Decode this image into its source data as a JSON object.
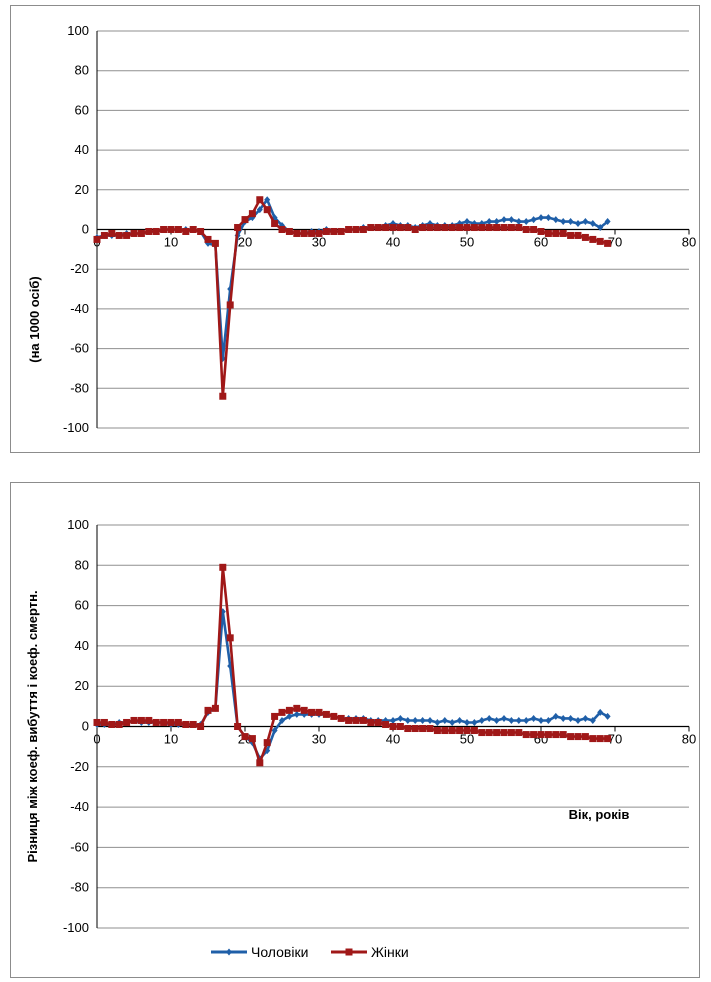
{
  "chart_data": [
    {
      "type": "line",
      "xlim": [
        0,
        80
      ],
      "ylim": [
        -100,
        100
      ],
      "x_ticks": [
        "0",
        "10",
        "20",
        "30",
        "40",
        "50",
        "60",
        "70",
        "80"
      ],
      "y_ticks": [
        "100",
        "80",
        "60",
        "40",
        "20",
        "0",
        "-20",
        "-40",
        "-60",
        "-80",
        "-100"
      ],
      "ylabel": "(на 1000 осіб)",
      "xlabel": "",
      "grid": "horizontal",
      "series": [
        {
          "name": "Чоловіки",
          "color": "#1f5fa8",
          "marker": "diamond",
          "x": [
            0,
            1,
            2,
            3,
            4,
            5,
            6,
            7,
            8,
            9,
            10,
            11,
            12,
            13,
            14,
            15,
            16,
            17,
            18,
            19,
            20,
            21,
            22,
            23,
            24,
            25,
            26,
            27,
            28,
            29,
            30,
            31,
            32,
            33,
            34,
            35,
            36,
            37,
            38,
            39,
            40,
            41,
            42,
            43,
            44,
            45,
            46,
            47,
            48,
            49,
            50,
            51,
            52,
            53,
            54,
            55,
            56,
            57,
            58,
            59,
            60,
            61,
            62,
            63,
            64,
            65,
            66,
            67,
            68,
            69
          ],
          "y": [
            -4,
            -3,
            -3,
            -3,
            -2,
            -2,
            -2,
            -1,
            -1,
            0,
            0,
            0,
            0,
            0,
            -1,
            -7,
            -8,
            -65,
            -30,
            -3,
            4,
            6,
            10,
            15,
            6,
            2,
            -1,
            -2,
            -2,
            -1,
            -1,
            0,
            -1,
            -1,
            0,
            0,
            1,
            1,
            1,
            2,
            3,
            2,
            2,
            1,
            2,
            3,
            2,
            2,
            2,
            3,
            4,
            3,
            3,
            4,
            4,
            5,
            5,
            4,
            4,
            5,
            6,
            6,
            5,
            4,
            4,
            3,
            4,
            3,
            1,
            4
          ]
        },
        {
          "name": "Жінки",
          "color": "#a01818",
          "marker": "square",
          "x": [
            0,
            1,
            2,
            3,
            4,
            5,
            6,
            7,
            8,
            9,
            10,
            11,
            12,
            13,
            14,
            15,
            16,
            17,
            18,
            19,
            20,
            21,
            22,
            23,
            24,
            25,
            26,
            27,
            28,
            29,
            30,
            31,
            32,
            33,
            34,
            35,
            36,
            37,
            38,
            39,
            40,
            41,
            42,
            43,
            44,
            45,
            46,
            47,
            48,
            49,
            50,
            51,
            52,
            53,
            54,
            55,
            56,
            57,
            58,
            59,
            60,
            61,
            62,
            63,
            64,
            65,
            66,
            67,
            68,
            69
          ],
          "y": [
            -5,
            -3,
            -2,
            -3,
            -3,
            -2,
            -2,
            -1,
            -1,
            0,
            0,
            0,
            -1,
            0,
            -1,
            -5,
            -7,
            -84,
            -38,
            1,
            5,
            8,
            15,
            10,
            3,
            0,
            -1,
            -2,
            -2,
            -2,
            -2,
            -1,
            -1,
            -1,
            0,
            0,
            0,
            1,
            1,
            1,
            1,
            1,
            1,
            0,
            1,
            1,
            1,
            1,
            1,
            1,
            1,
            1,
            1,
            1,
            1,
            1,
            1,
            1,
            0,
            0,
            -1,
            -2,
            -2,
            -2,
            -3,
            -3,
            -4,
            -5,
            -6,
            -7
          ]
        }
      ]
    },
    {
      "type": "line",
      "xlim": [
        0,
        80
      ],
      "ylim": [
        -100,
        100
      ],
      "x_ticks": [
        "0",
        "10",
        "20",
        "30",
        "40",
        "50",
        "60",
        "70",
        "80"
      ],
      "y_ticks": [
        "100",
        "80",
        "60",
        "40",
        "20",
        "0",
        "-20",
        "-40",
        "-60",
        "-80",
        "-100"
      ],
      "ylabel": "Різниця між коеф. вибуття і коеф. смертн.",
      "xlabel": "Вік, років",
      "grid": "horizontal",
      "legend": "bottom",
      "series": [
        {
          "name": "Чоловіки",
          "color": "#1f5fa8",
          "marker": "diamond",
          "x": [
            0,
            1,
            2,
            3,
            4,
            5,
            6,
            7,
            8,
            9,
            10,
            11,
            12,
            13,
            14,
            15,
            16,
            17,
            18,
            19,
            20,
            21,
            22,
            23,
            24,
            25,
            26,
            27,
            28,
            29,
            30,
            31,
            32,
            33,
            34,
            35,
            36,
            37,
            38,
            39,
            40,
            41,
            42,
            43,
            44,
            45,
            46,
            47,
            48,
            49,
            50,
            51,
            52,
            53,
            54,
            55,
            56,
            57,
            58,
            59,
            60,
            61,
            62,
            63,
            64,
            65,
            66,
            67,
            68,
            69
          ],
          "y": [
            1,
            1,
            1,
            2,
            2,
            3,
            2,
            2,
            2,
            2,
            1,
            1,
            1,
            1,
            1,
            7,
            9,
            57,
            30,
            0,
            -5,
            -8,
            -16,
            -12,
            -2,
            3,
            5,
            6,
            6,
            6,
            6,
            6,
            5,
            4,
            4,
            4,
            4,
            3,
            3,
            3,
            3,
            4,
            3,
            3,
            3,
            3,
            2,
            3,
            2,
            3,
            2,
            2,
            3,
            4,
            3,
            4,
            3,
            3,
            3,
            4,
            3,
            3,
            5,
            4,
            4,
            3,
            4,
            3,
            7,
            5
          ]
        },
        {
          "name": "Жінки",
          "color": "#a01818",
          "marker": "square",
          "x": [
            0,
            1,
            2,
            3,
            4,
            5,
            6,
            7,
            8,
            9,
            10,
            11,
            12,
            13,
            14,
            15,
            16,
            17,
            18,
            19,
            20,
            21,
            22,
            23,
            24,
            25,
            26,
            27,
            28,
            29,
            30,
            31,
            32,
            33,
            34,
            35,
            36,
            37,
            38,
            39,
            40,
            41,
            42,
            43,
            44,
            45,
            46,
            47,
            48,
            49,
            50,
            51,
            52,
            53,
            54,
            55,
            56,
            57,
            58,
            59,
            60,
            61,
            62,
            63,
            64,
            65,
            66,
            67,
            68,
            69
          ],
          "y": [
            2,
            2,
            1,
            1,
            2,
            3,
            3,
            3,
            2,
            2,
            2,
            2,
            1,
            1,
            0,
            8,
            9,
            79,
            44,
            0,
            -5,
            -6,
            -18,
            -8,
            5,
            7,
            8,
            9,
            8,
            7,
            7,
            6,
            5,
            4,
            3,
            3,
            3,
            2,
            2,
            1,
            0,
            0,
            -1,
            -1,
            -1,
            -1,
            -2,
            -2,
            -2,
            -2,
            -2,
            -2,
            -3,
            -3,
            -3,
            -3,
            -3,
            -3,
            -4,
            -4,
            -4,
            -4,
            -4,
            -4,
            -5,
            -5,
            -5,
            -6,
            -6,
            -6
          ]
        }
      ]
    }
  ],
  "legend": {
    "items": [
      {
        "label": "Чоловіки",
        "color": "#1f5fa8",
        "marker": "diamond"
      },
      {
        "label": "Жінки",
        "color": "#a01818",
        "marker": "square"
      }
    ]
  }
}
